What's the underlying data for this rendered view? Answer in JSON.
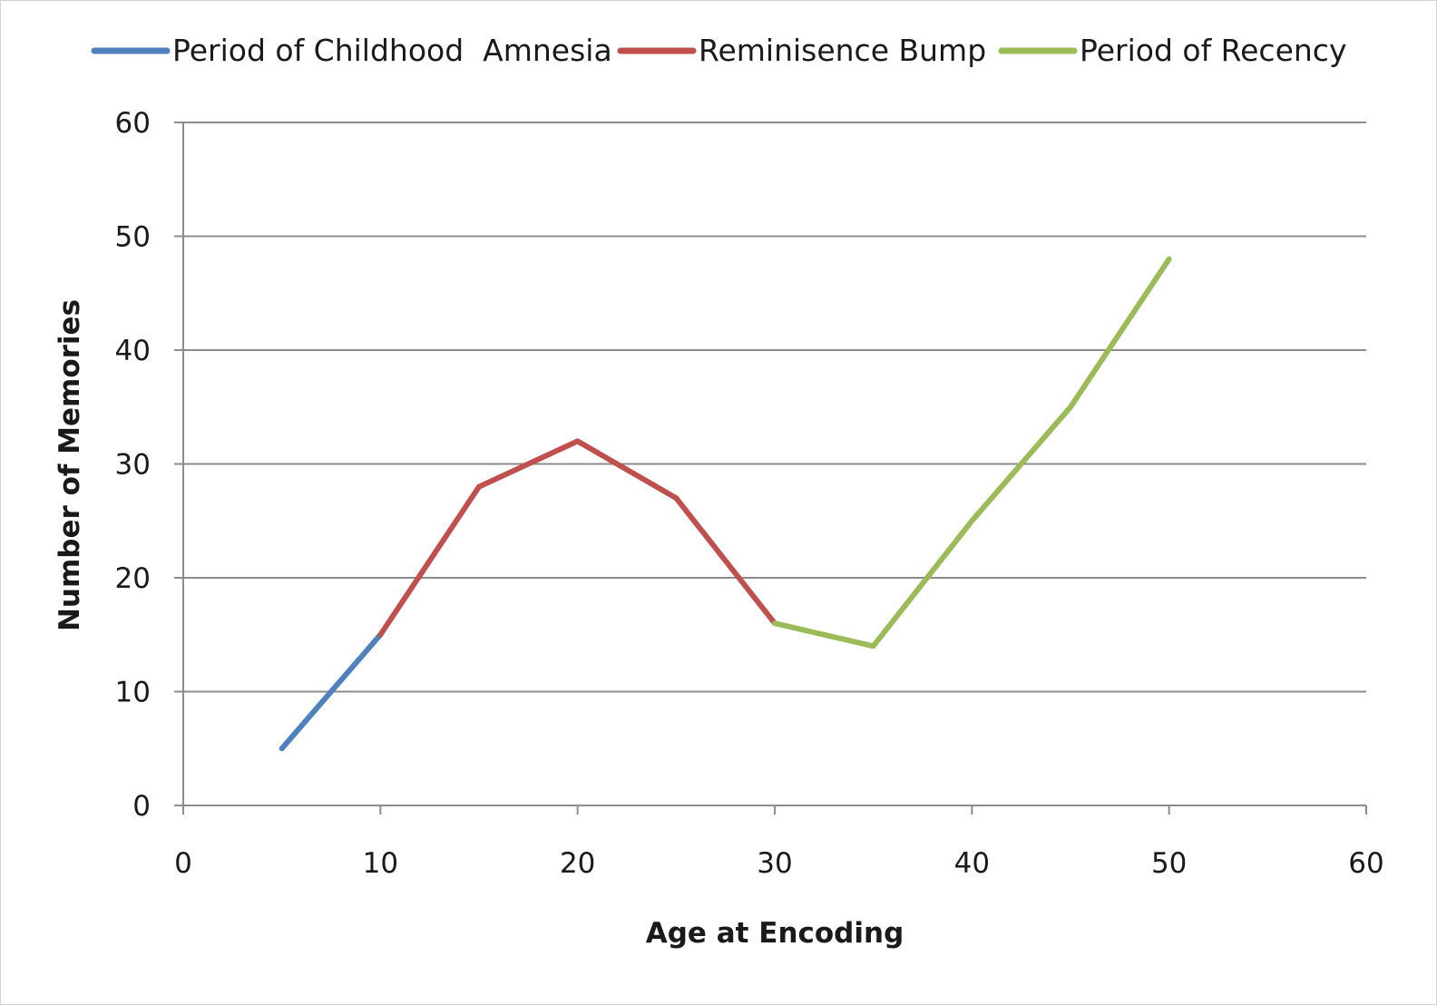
{
  "chart_data": {
    "type": "line",
    "title": "",
    "xlabel": "Age at Encoding",
    "ylabel": "Number of Memories",
    "xlim": [
      0,
      60
    ],
    "ylim": [
      0,
      60
    ],
    "xticks": [
      0,
      10,
      20,
      30,
      40,
      50,
      60
    ],
    "yticks": [
      0,
      10,
      20,
      30,
      40,
      50,
      60
    ],
    "grid": "horizontal",
    "legend_position": "top",
    "series": [
      {
        "name": "Period of Childhood  Amnesia",
        "color": "#4f81bd",
        "points": [
          [
            5,
            5
          ],
          [
            10,
            15
          ]
        ]
      },
      {
        "name": "Reminisence Bump",
        "color": "#c0504d",
        "points": [
          [
            10,
            15
          ],
          [
            15,
            28
          ],
          [
            20,
            32
          ],
          [
            25,
            27
          ],
          [
            30,
            16
          ]
        ]
      },
      {
        "name": "Period of Recency",
        "color": "#9bbb59",
        "points": [
          [
            30,
            16
          ],
          [
            35,
            14
          ],
          [
            40,
            25
          ],
          [
            45,
            35
          ],
          [
            50,
            48
          ]
        ]
      }
    ]
  }
}
